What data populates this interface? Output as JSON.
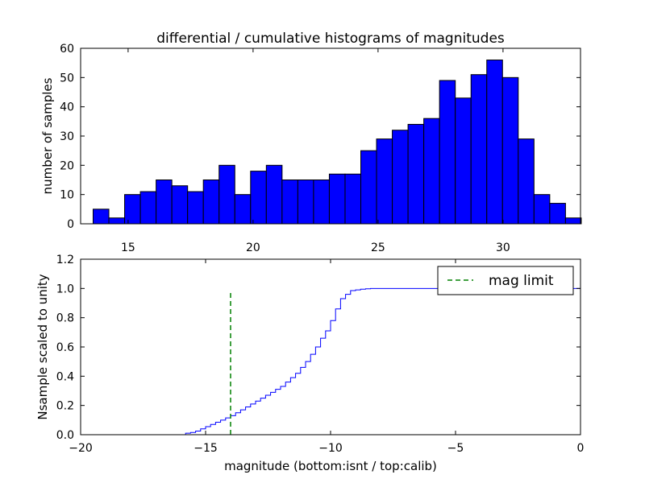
{
  "chart_data": [
    {
      "type": "bar",
      "title": "differential / cumulative histograms of magnitudes",
      "xlabel": "",
      "ylabel": "number of samples",
      "xlim": [
        13.1,
        33.1
      ],
      "ylim": [
        0,
        60
      ],
      "bin_width": 0.63,
      "bin_left_edges": [
        13.6,
        14.23,
        14.86,
        15.49,
        16.12,
        16.75,
        17.38,
        18.01,
        18.64,
        19.27,
        19.9,
        20.53,
        21.16,
        21.79,
        22.42,
        23.05,
        23.68,
        24.31,
        24.94,
        25.57,
        26.2,
        26.83,
        27.46,
        28.09,
        28.72,
        29.35,
        29.98,
        30.61,
        31.24,
        31.87,
        32.5
      ],
      "values": [
        5,
        2,
        10,
        11,
        15,
        13,
        11,
        15,
        20,
        10,
        18,
        20,
        15,
        15,
        15,
        17,
        17,
        25,
        29,
        32,
        34,
        36,
        49,
        43,
        51,
        56,
        50,
        29,
        10,
        7,
        2
      ],
      "xticks": [
        15,
        20,
        25,
        30
      ],
      "yticks": [
        0,
        10,
        20,
        30,
        40,
        50,
        60
      ],
      "bar_color": "#0000ff"
    },
    {
      "type": "line",
      "title": "",
      "xlabel": "magnitude (bottom:isnt / top:calib)",
      "ylabel": "Nsample scaled to unity",
      "xlim": [
        -20,
        0
      ],
      "ylim": [
        0,
        1.2
      ],
      "xticks": [
        -20,
        -15,
        -10,
        -5,
        0
      ],
      "yticks": [
        0.0,
        0.2,
        0.4,
        0.6,
        0.8,
        1.0,
        1.2
      ],
      "series": [
        {
          "name": "cumulative",
          "style": "step",
          "color": "#0000ff",
          "x": [
            -20,
            -15.8,
            -15.6,
            -15.4,
            -15.2,
            -15.0,
            -14.8,
            -14.6,
            -14.4,
            -14.2,
            -14.0,
            -13.8,
            -13.6,
            -13.4,
            -13.2,
            -13.0,
            -12.8,
            -12.6,
            -12.4,
            -12.2,
            -12.0,
            -11.8,
            -11.6,
            -11.4,
            -11.2,
            -11.0,
            -10.8,
            -10.6,
            -10.4,
            -10.2,
            -10.0,
            -9.8,
            -9.6,
            -9.4,
            -9.2,
            -9.0,
            -8.8,
            -8.6,
            -8.4,
            -8.2,
            0
          ],
          "y": [
            0.0,
            0.01,
            0.015,
            0.025,
            0.04,
            0.055,
            0.07,
            0.085,
            0.1,
            0.115,
            0.13,
            0.15,
            0.17,
            0.19,
            0.21,
            0.23,
            0.25,
            0.27,
            0.29,
            0.31,
            0.33,
            0.36,
            0.39,
            0.42,
            0.46,
            0.5,
            0.55,
            0.6,
            0.66,
            0.71,
            0.78,
            0.86,
            0.93,
            0.96,
            0.985,
            0.99,
            0.995,
            0.998,
            1.0,
            1.0,
            1.0
          ]
        },
        {
          "name": "mag limit",
          "style": "dashed",
          "color": "#008000",
          "x": [
            -14.0,
            -14.0
          ],
          "y": [
            0.0,
            0.98
          ]
        }
      ],
      "legend": {
        "label": "mag limit",
        "placement": "top-right"
      }
    }
  ]
}
